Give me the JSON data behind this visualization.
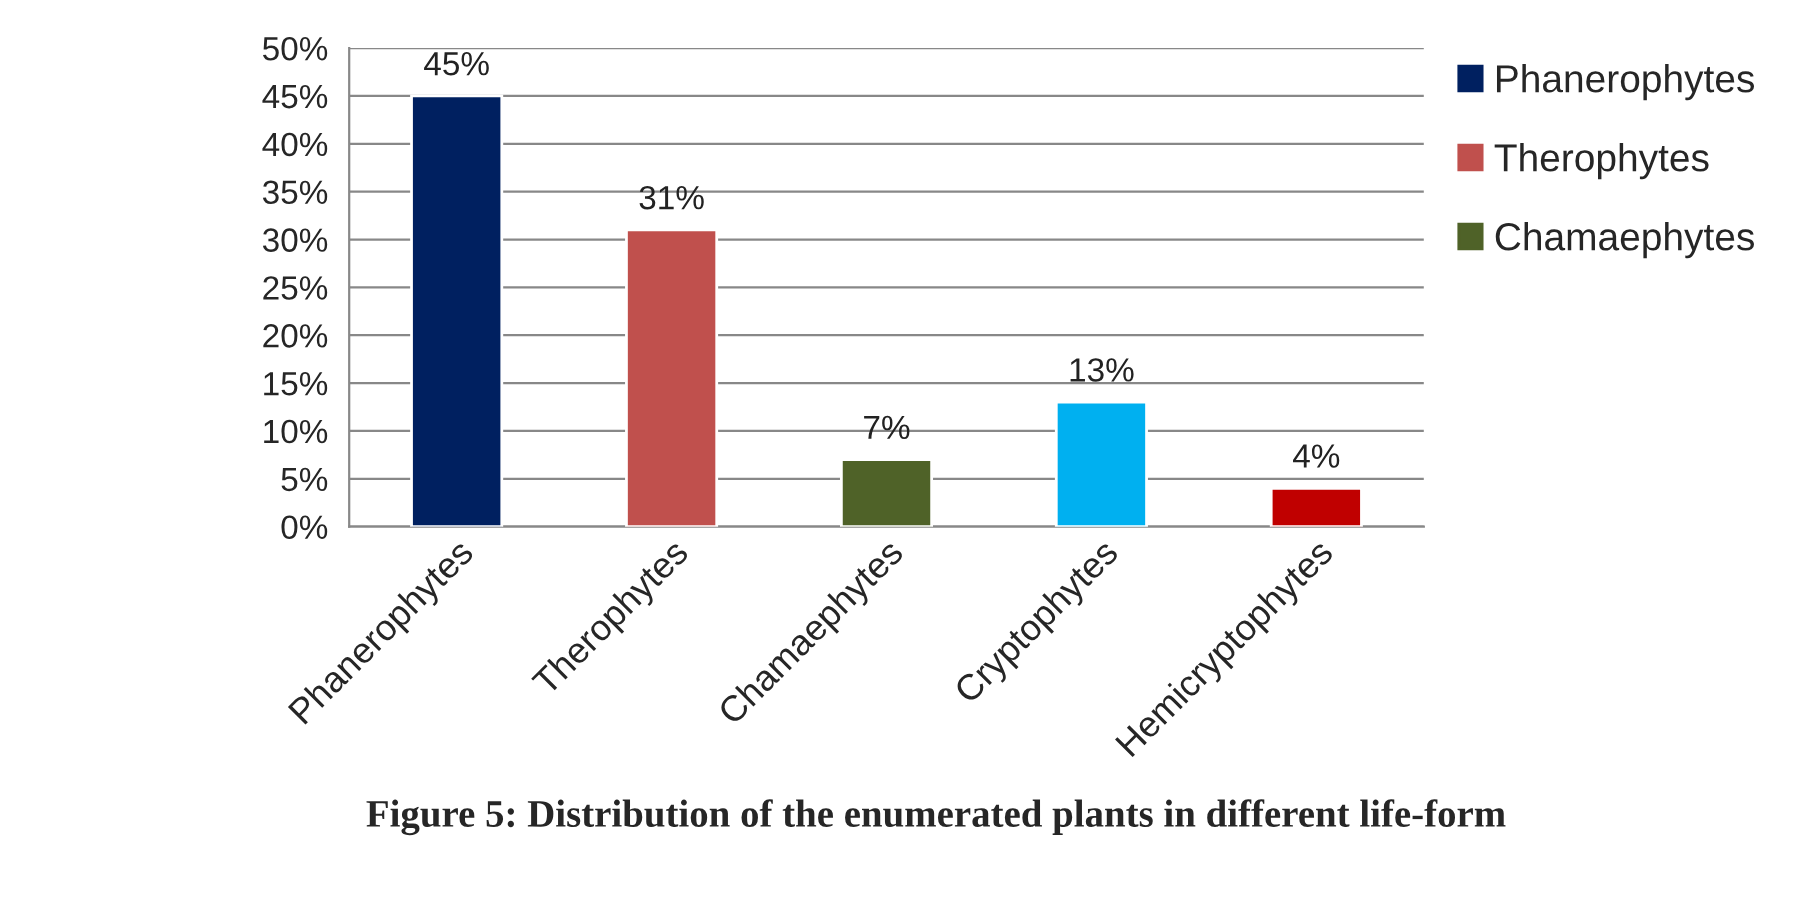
{
  "chart_data": {
    "type": "bar",
    "categories": [
      "Phanerophytes",
      "Therophytes",
      "Chamaephytes",
      "Cryptophytes",
      "Hemicryptophytes"
    ],
    "series": [
      {
        "name": "Phanerophytes",
        "color": "#002060",
        "values": [
          45,
          null,
          null,
          null,
          null
        ],
        "value_labels": [
          "45%",
          null,
          null,
          null,
          null
        ]
      },
      {
        "name": "Therophytes",
        "color": "#c0504d",
        "values": [
          null,
          31,
          null,
          null,
          null
        ],
        "value_labels": [
          null,
          "31%",
          null,
          null,
          null
        ]
      },
      {
        "name": "Chamaephytes",
        "color": "#4f6228",
        "values": [
          null,
          null,
          7,
          null,
          null
        ],
        "value_labels": [
          null,
          null,
          "7%",
          null,
          null
        ]
      },
      {
        "color": "#00b0f0",
        "values": [
          null,
          null,
          null,
          13,
          null
        ],
        "value_labels": [
          null,
          null,
          null,
          "13%",
          null
        ]
      },
      {
        "color": "#c00000",
        "values": [
          null,
          null,
          null,
          null,
          4
        ],
        "value_labels": [
          null,
          null,
          null,
          null,
          "4%"
        ]
      }
    ],
    "ylim": [
      0,
      50
    ],
    "yticks": [
      {
        "value": 0,
        "label": "0%"
      },
      {
        "value": 5,
        "label": "5%"
      },
      {
        "value": 10,
        "label": "10%"
      },
      {
        "value": 15,
        "label": "15%"
      },
      {
        "value": 20,
        "label": "20%"
      },
      {
        "value": 25,
        "label": "25%"
      },
      {
        "value": 30,
        "label": "30%"
      },
      {
        "value": 35,
        "label": "35%"
      },
      {
        "value": 40,
        "label": "40%"
      },
      {
        "value": 45,
        "label": "45%"
      },
      {
        "value": 50,
        "label": "50%"
      }
    ],
    "grid": "y",
    "legend": "top right",
    "annotations": [
      "Figure 5: Distribution of the enumerated plants in different life-form"
    ]
  }
}
